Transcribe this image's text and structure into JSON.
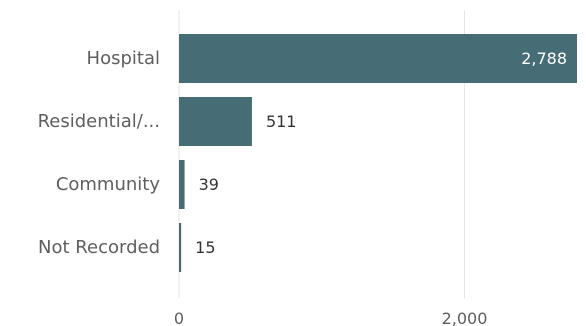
{
  "chart_data": {
    "type": "bar",
    "orientation": "horizontal",
    "categories": [
      "Hospital",
      "Residential/...",
      "Community",
      "Not Recorded"
    ],
    "values": [
      2788,
      511,
      39,
      15
    ],
    "data_labels": [
      "2,788",
      "511",
      "39",
      "15"
    ],
    "x_ticks": [
      0,
      2000
    ],
    "x_tick_labels": [
      "0",
      "2,000"
    ],
    "xlim": [
      0,
      2788
    ],
    "grid": true,
    "legend": "none",
    "title": "",
    "xlabel": "",
    "ylabel": "",
    "colors": {
      "bar": "#466d75",
      "label_inside": "#ffffff",
      "label_outside": "#333333",
      "axis_text": "#605e5c",
      "grid": "#e6e6e6"
    }
  }
}
